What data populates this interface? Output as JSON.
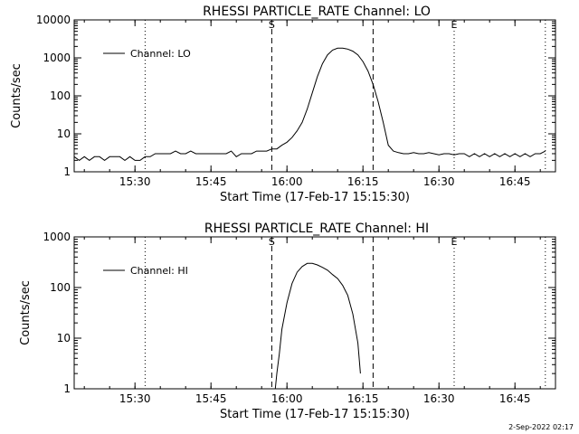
{
  "footer": {
    "date_stamp": "2-Sep-2022 02:17"
  },
  "chart_data": [
    {
      "type": "line",
      "title": "RHESSI PARTICLE_RATE Channel: LO",
      "xlabel": "Start Time (17-Feb-17 15:15:30)",
      "ylabel": "Counts/sec",
      "y_scale": "log",
      "ylim": [
        1,
        10000
      ],
      "xlim": [
        "15:18",
        "16:53"
      ],
      "x_ticks": [
        "15:30",
        "15:45",
        "16:00",
        "16:15",
        "16:30",
        "16:45"
      ],
      "y_ticks": [
        "1",
        "10",
        "100",
        "1000",
        "10000"
      ],
      "grid": false,
      "legend": {
        "position": "top-left",
        "entries": [
          "Channel: LO"
        ]
      },
      "markers": [
        {
          "label": "",
          "time": "15:32",
          "style": "dotted"
        },
        {
          "label": "S",
          "time": "15:57",
          "style": "dashed"
        },
        {
          "label": "",
          "time": "16:17",
          "style": "dashed"
        },
        {
          "label": "E",
          "time": "16:33",
          "style": "dotted"
        },
        {
          "label": "",
          "time": "16:51",
          "style": "dotted"
        }
      ],
      "series": [
        {
          "name": "Channel: LO",
          "x": [
            "15:18",
            "15:19",
            "15:20",
            "15:21",
            "15:22",
            "15:23",
            "15:24",
            "15:25",
            "15:26",
            "15:27",
            "15:28",
            "15:29",
            "15:30",
            "15:31",
            "15:32",
            "15:33",
            "15:34",
            "15:35",
            "15:36",
            "15:37",
            "15:38",
            "15:39",
            "15:40",
            "15:41",
            "15:42",
            "15:43",
            "15:44",
            "15:45",
            "15:46",
            "15:47",
            "15:48",
            "15:49",
            "15:50",
            "15:51",
            "15:52",
            "15:53",
            "15:54",
            "15:55",
            "15:56",
            "15:57",
            "15:58",
            "15:59",
            "16:00",
            "16:01",
            "16:02",
            "16:03",
            "16:04",
            "16:05",
            "16:06",
            "16:07",
            "16:08",
            "16:09",
            "16:10",
            "16:11",
            "16:12",
            "16:13",
            "16:14",
            "16:15",
            "16:16",
            "16:17",
            "16:18",
            "16:19",
            "16:20",
            "16:21",
            "16:22",
            "16:23",
            "16:24",
            "16:25",
            "16:26",
            "16:27",
            "16:28",
            "16:29",
            "16:30",
            "16:31",
            "16:32",
            "16:33",
            "16:34",
            "16:35",
            "16:36",
            "16:37",
            "16:38",
            "16:39",
            "16:40",
            "16:41",
            "16:42",
            "16:43",
            "16:44",
            "16:45",
            "16:46",
            "16:47",
            "16:48",
            "16:49",
            "16:50",
            "16:51"
          ],
          "values": [
            2.5,
            2,
            2.5,
            2,
            2.5,
            2.5,
            2,
            2.5,
            2.5,
            2.5,
            2,
            2.5,
            2,
            2,
            2.5,
            2.5,
            3,
            3,
            3,
            3,
            3.5,
            3,
            3,
            3.5,
            3,
            3,
            3,
            3,
            3,
            3,
            3,
            3.5,
            2.5,
            3,
            3,
            3,
            3.5,
            3.5,
            3.5,
            4,
            4,
            5,
            6,
            8,
            12,
            20,
            45,
            120,
            320,
            700,
            1200,
            1600,
            1800,
            1800,
            1700,
            1500,
            1200,
            800,
            450,
            200,
            70,
            20,
            5,
            3.5,
            3.2,
            3,
            3,
            3.2,
            3,
            3,
            3.2,
            3,
            2.8,
            3,
            3,
            2.8,
            3,
            3,
            2.5,
            3,
            2.5,
            3,
            2.5,
            3,
            2.5,
            3,
            2.5,
            3,
            2.5,
            3,
            2.5,
            3,
            3,
            3.5
          ]
        }
      ]
    },
    {
      "type": "line",
      "title": "RHESSI PARTICLE_RATE Channel: HI",
      "xlabel": "Start Time (17-Feb-17 15:15:30)",
      "ylabel": "Counts/sec",
      "y_scale": "log",
      "ylim": [
        1,
        1000
      ],
      "xlim": [
        "15:18",
        "16:53"
      ],
      "x_ticks": [
        "15:30",
        "15:45",
        "16:00",
        "16:15",
        "16:30",
        "16:45"
      ],
      "y_ticks": [
        "1",
        "10",
        "100",
        "1000"
      ],
      "grid": false,
      "legend": {
        "position": "top-left",
        "entries": [
          "Channel: HI"
        ]
      },
      "markers": [
        {
          "label": "",
          "time": "15:32",
          "style": "dotted"
        },
        {
          "label": "S",
          "time": "15:57",
          "style": "dashed"
        },
        {
          "label": "",
          "time": "16:17",
          "style": "dashed"
        },
        {
          "label": "E",
          "time": "16:33",
          "style": "dotted"
        },
        {
          "label": "",
          "time": "16:51",
          "style": "dotted"
        }
      ],
      "series": [
        {
          "name": "Channel: HI",
          "x": [
            "15:57.7",
            "15:58",
            "15:58.5",
            "15:59",
            "16:00",
            "16:01",
            "16:02",
            "16:03",
            "16:04",
            "16:05",
            "16:06",
            "16:07",
            "16:08",
            "16:09",
            "16:10",
            "16:11",
            "16:12",
            "16:13",
            "16:14",
            "16:14.5"
          ],
          "values": [
            1,
            2,
            5,
            15,
            50,
            120,
            200,
            260,
            300,
            300,
            280,
            250,
            220,
            180,
            150,
            110,
            70,
            30,
            8,
            2
          ]
        }
      ]
    }
  ]
}
